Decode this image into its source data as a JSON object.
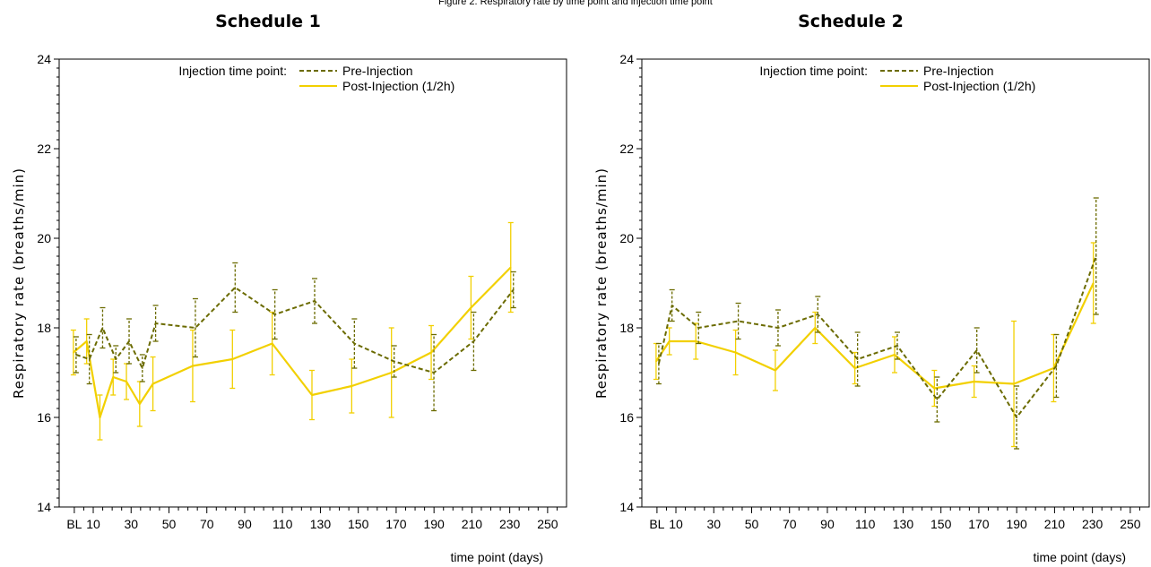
{
  "caption": "Figure 2. Respiratory rate by time point and injection time point",
  "chart_data": [
    {
      "type": "line",
      "title": "Schedule 1",
      "xlabel": "time point (days)",
      "ylabel": "Respiratory rate (breaths/min)",
      "ylim": [
        14,
        24
      ],
      "yticks": [
        14,
        16,
        18,
        20,
        22,
        24
      ],
      "xlim": [
        -8,
        260
      ],
      "xticks": [
        0,
        10,
        30,
        50,
        70,
        90,
        110,
        130,
        150,
        170,
        190,
        210,
        230,
        250
      ],
      "xtick_labels": [
        "BL",
        "10",
        "30",
        "50",
        "70",
        "90",
        "110",
        "130",
        "150",
        "170",
        "190",
        "210",
        "230",
        "250"
      ],
      "grid": false,
      "legend": {
        "title": "Injection time point:",
        "placement": "top-center",
        "entries": [
          "Pre-Injection",
          "Post-Injection (1/2h)"
        ]
      },
      "series": [
        {
          "name": "Pre-Injection",
          "color": "#6b6b00",
          "dash": true,
          "x": [
            0,
            7,
            14,
            21,
            28,
            35,
            42,
            63,
            84,
            105,
            126,
            147,
            168,
            189,
            210,
            231
          ],
          "y": [
            17.4,
            17.3,
            18.0,
            17.3,
            17.7,
            17.1,
            18.1,
            18.0,
            18.9,
            18.3,
            18.6,
            17.65,
            17.25,
            17.0,
            17.7,
            18.85
          ],
          "err": [
            0.4,
            0.55,
            0.45,
            0.3,
            0.5,
            0.3,
            0.4,
            0.65,
            0.55,
            0.55,
            0.5,
            0.55,
            0.35,
            0.85,
            0.65,
            0.4
          ]
        },
        {
          "name": "Post-Injection (1/2h)",
          "color": "#f2d000",
          "dash": false,
          "x": [
            0,
            7,
            14,
            21,
            28,
            35,
            42,
            63,
            84,
            105,
            126,
            147,
            168,
            189,
            210,
            231
          ],
          "y": [
            17.45,
            17.7,
            16.0,
            16.9,
            16.8,
            16.3,
            16.75,
            17.15,
            17.3,
            17.65,
            16.5,
            16.7,
            17.0,
            17.45,
            18.45,
            19.35
          ],
          "err": [
            0.5,
            0.5,
            0.5,
            0.4,
            0.4,
            0.5,
            0.6,
            0.8,
            0.65,
            0.7,
            0.55,
            0.6,
            1.0,
            0.6,
            0.7,
            1.0
          ]
        }
      ]
    },
    {
      "type": "line",
      "title": "Schedule 2",
      "xlabel": "time point (days)",
      "ylabel": "Respiratory rate (breaths/min)",
      "ylim": [
        14,
        24
      ],
      "yticks": [
        14,
        16,
        18,
        20,
        22,
        24
      ],
      "xlim": [
        -8,
        260
      ],
      "xticks": [
        0,
        10,
        30,
        50,
        70,
        90,
        110,
        130,
        150,
        170,
        190,
        210,
        230,
        250
      ],
      "xtick_labels": [
        "BL",
        "10",
        "30",
        "50",
        "70",
        "90",
        "110",
        "130",
        "150",
        "170",
        "190",
        "210",
        "230",
        "250"
      ],
      "grid": false,
      "legend": {
        "title": "Injection time point:",
        "placement": "top-center",
        "entries": [
          "Pre-Injection",
          "Post-Injection (1/2h)"
        ]
      },
      "series": [
        {
          "name": "Pre-Injection",
          "color": "#6b6b00",
          "dash": true,
          "x": [
            0,
            7,
            21,
            42,
            63,
            84,
            105,
            126,
            147,
            168,
            189,
            210,
            231
          ],
          "y": [
            17.2,
            18.5,
            18.0,
            18.15,
            18.0,
            18.3,
            17.3,
            17.6,
            16.4,
            17.5,
            16.0,
            17.15,
            19.6
          ],
          "err": [
            0.45,
            0.35,
            0.35,
            0.4,
            0.4,
            0.4,
            0.6,
            0.3,
            0.5,
            0.5,
            0.7,
            0.7,
            1.3
          ]
        },
        {
          "name": "Post-Injection (1/2h)",
          "color": "#f2d000",
          "dash": false,
          "x": [
            0,
            7,
            21,
            42,
            63,
            84,
            105,
            126,
            147,
            168,
            189,
            210,
            231
          ],
          "y": [
            17.25,
            17.7,
            17.7,
            17.45,
            17.05,
            18.0,
            17.1,
            17.4,
            16.65,
            16.8,
            16.75,
            17.1,
            19.0
          ],
          "err": [
            0.4,
            0.3,
            0.4,
            0.5,
            0.45,
            0.35,
            0.35,
            0.4,
            0.4,
            0.35,
            1.4,
            0.75,
            0.9
          ]
        }
      ]
    }
  ]
}
